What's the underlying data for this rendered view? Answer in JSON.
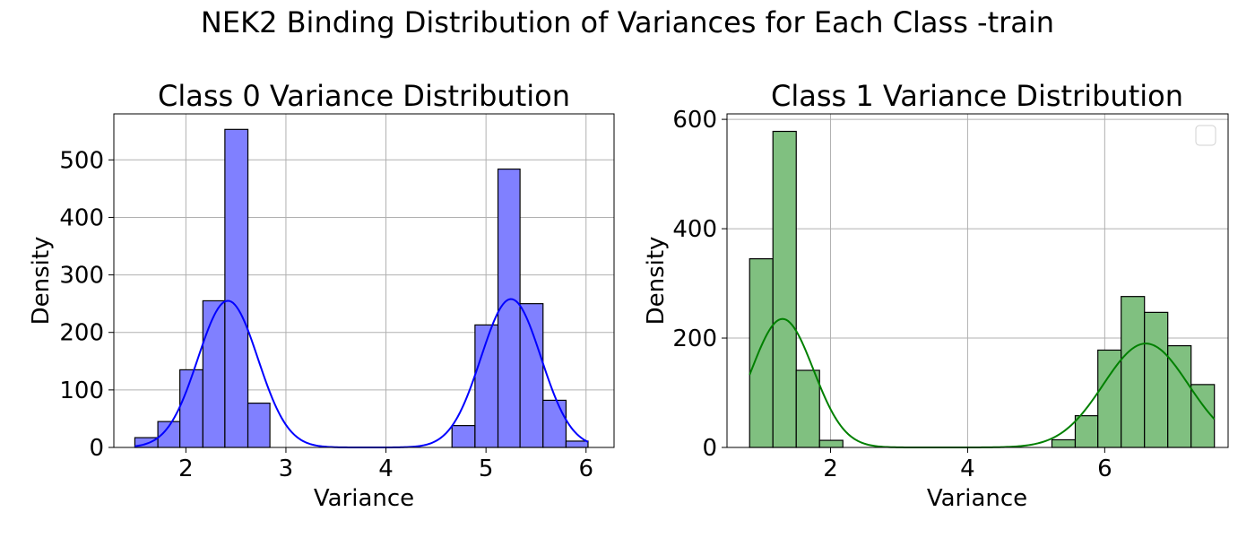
{
  "figure": {
    "title": "NEK2 Binding Distribution of Variances for Each Class -train"
  },
  "chart_data": [
    {
      "type": "bar",
      "title": "Class 0 Variance Distribution",
      "xlabel": "Variance",
      "ylabel": "Density",
      "xlim": [
        1.28,
        6.28
      ],
      "ylim": [
        0,
        580
      ],
      "xticks": [
        2,
        3,
        4,
        5,
        6
      ],
      "yticks": [
        0,
        100,
        200,
        300,
        400,
        500
      ],
      "grid": true,
      "bar_color": "#8080ff",
      "curve_color": "#0000ff",
      "bins": [
        {
          "x0": 1.49,
          "x1": 1.72,
          "value": 17
        },
        {
          "x0": 1.72,
          "x1": 1.94,
          "value": 45
        },
        {
          "x0": 1.94,
          "x1": 2.17,
          "value": 135
        },
        {
          "x0": 2.17,
          "x1": 2.39,
          "value": 255
        },
        {
          "x0": 2.39,
          "x1": 2.62,
          "value": 553
        },
        {
          "x0": 2.62,
          "x1": 2.84,
          "value": 77
        },
        {
          "x0": 4.66,
          "x1": 4.89,
          "value": 38
        },
        {
          "x0": 4.89,
          "x1": 5.12,
          "value": 213
        },
        {
          "x0": 5.12,
          "x1": 5.34,
          "value": 484
        },
        {
          "x0": 5.34,
          "x1": 5.57,
          "value": 250
        },
        {
          "x0": 5.57,
          "x1": 5.8,
          "value": 82
        },
        {
          "x0": 5.8,
          "x1": 6.02,
          "value": 11
        }
      ],
      "kde": {
        "x_range": [
          1.49,
          6.02
        ],
        "components": [
          {
            "mean": 2.42,
            "sd": 0.3,
            "peak": 255
          },
          {
            "mean": 5.25,
            "sd": 0.3,
            "peak": 258
          }
        ]
      }
    },
    {
      "type": "bar",
      "title": "Class 1 Variance Distribution",
      "xlabel": "Variance",
      "ylabel": "Density",
      "xlim": [
        0.49,
        7.8
      ],
      "ylim": [
        0,
        610
      ],
      "xticks": [
        2,
        4,
        6
      ],
      "yticks": [
        0,
        200,
        400,
        600
      ],
      "grid": true,
      "legend": "upper-right",
      "bar_color": "#80c080",
      "curve_color": "#008000",
      "bins": [
        {
          "x0": 0.82,
          "x1": 1.16,
          "value": 345
        },
        {
          "x0": 1.16,
          "x1": 1.5,
          "value": 578
        },
        {
          "x0": 1.5,
          "x1": 1.84,
          "value": 141
        },
        {
          "x0": 1.84,
          "x1": 2.18,
          "value": 13
        },
        {
          "x0": 5.23,
          "x1": 5.57,
          "value": 14
        },
        {
          "x0": 5.57,
          "x1": 5.9,
          "value": 58
        },
        {
          "x0": 5.9,
          "x1": 6.24,
          "value": 178
        },
        {
          "x0": 6.24,
          "x1": 6.58,
          "value": 276
        },
        {
          "x0": 6.58,
          "x1": 6.92,
          "value": 247
        },
        {
          "x0": 6.92,
          "x1": 7.26,
          "value": 186
        },
        {
          "x0": 7.26,
          "x1": 7.6,
          "value": 115
        }
      ],
      "kde": {
        "x_range": [
          0.82,
          7.6
        ],
        "components": [
          {
            "mean": 1.3,
            "sd": 0.45,
            "peak": 235
          },
          {
            "mean": 6.6,
            "sd": 0.62,
            "peak": 190
          }
        ]
      }
    }
  ]
}
